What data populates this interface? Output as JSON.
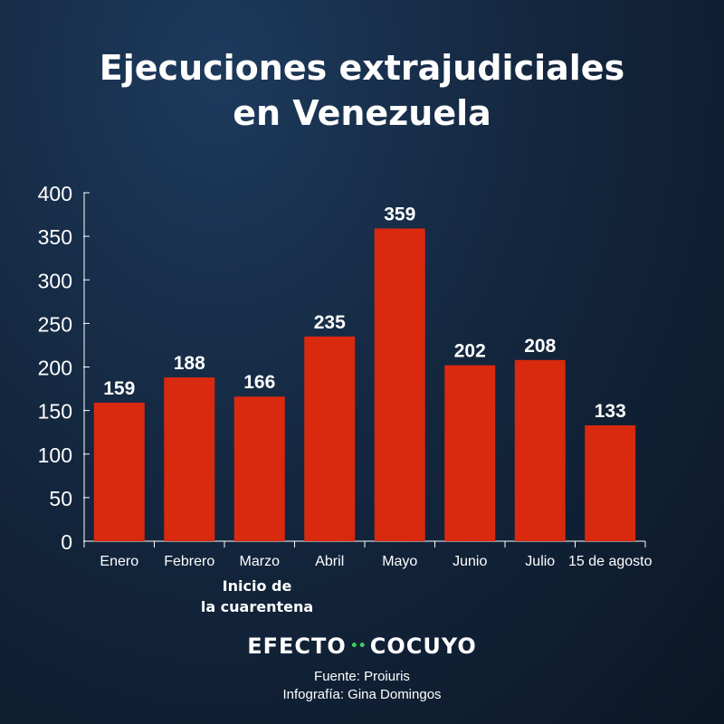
{
  "title_line1": "Ejecuciones extrajudiciales",
  "title_line2": "en Venezuela",
  "annotation": {
    "line1": "Inicio de",
    "line2": "la cuarentena"
  },
  "logo": {
    "left": "EFECTO",
    "right": "COCUYO",
    "accent": "#3ecf5a"
  },
  "credits": {
    "source": "Fuente: Proiuris",
    "infographic": "Infografía: Gina Domingos"
  },
  "colors": {
    "bar": "#d9290f",
    "text": "#ffffff"
  },
  "chart_data": {
    "type": "bar",
    "title": "Ejecuciones extrajudiciales en Venezuela",
    "categories": [
      "Enero",
      "Febrero",
      "Marzo",
      "Abril",
      "Mayo",
      "Junio",
      "Julio",
      "15 de agosto"
    ],
    "values": [
      159,
      188,
      166,
      235,
      359,
      202,
      208,
      133
    ],
    "data_labels": [
      "159",
      "188",
      "166",
      "235",
      "359",
      "202",
      "208",
      "133"
    ],
    "yticks": [
      0,
      50,
      100,
      150,
      200,
      250,
      300,
      350,
      400
    ],
    "ylim": [
      0,
      400
    ],
    "xlabel": "",
    "ylabel": "",
    "grid": false
  }
}
